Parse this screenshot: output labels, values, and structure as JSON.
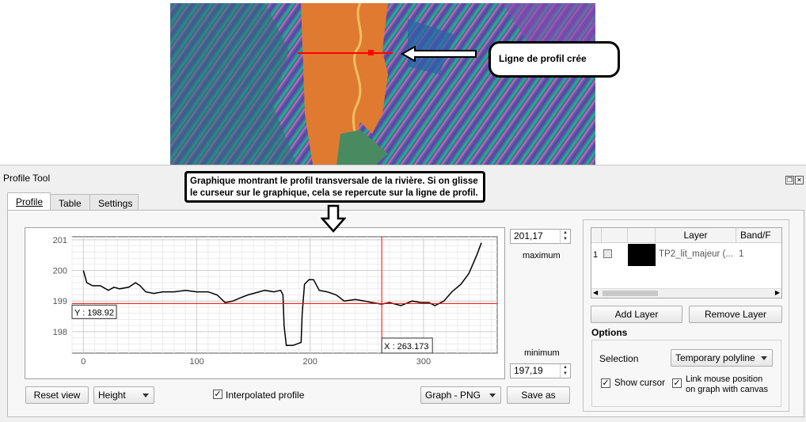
{
  "map": {
    "annotation_text": "Ligne de profil crée"
  },
  "dock": {
    "title": "Profile Tool",
    "annotation_text": "Graphique montrant le profil transversale de la rivière. Si on glisse le curseur sur le graphique, cela se repercute sur la ligne de profil."
  },
  "tabs": [
    {
      "label": "Profile"
    },
    {
      "label": "Table"
    },
    {
      "label": "Settings"
    }
  ],
  "plot": {
    "max_value": "201,17",
    "max_label": "maximum",
    "min_label": "minimum",
    "min_value": "197,19",
    "cursor_y_label": "Y : 198.92",
    "cursor_x_label": "X : 263.173"
  },
  "chart_data": {
    "type": "line",
    "title": "",
    "xlabel": "",
    "ylabel": "",
    "xlim": [
      -10,
      365
    ],
    "ylim": [
      197.3,
      201.1
    ],
    "x_ticks": [
      0,
      100,
      200,
      300
    ],
    "y_ticks": [
      198,
      199,
      200,
      201
    ],
    "grid": true,
    "cursor": {
      "x": 263.173,
      "y": 198.92,
      "color": "#ff0000"
    },
    "series": [
      {
        "color": "#000000",
        "points": [
          [
            0,
            200.0
          ],
          [
            3,
            199.6
          ],
          [
            8,
            199.5
          ],
          [
            15,
            199.5
          ],
          [
            22,
            199.35
          ],
          [
            27,
            199.45
          ],
          [
            32,
            199.4
          ],
          [
            40,
            199.45
          ],
          [
            46,
            199.6
          ],
          [
            50,
            199.5
          ],
          [
            55,
            199.3
          ],
          [
            62,
            199.25
          ],
          [
            70,
            199.3
          ],
          [
            80,
            199.3
          ],
          [
            90,
            199.35
          ],
          [
            100,
            199.3
          ],
          [
            110,
            199.3
          ],
          [
            118,
            199.2
          ],
          [
            125,
            198.95
          ],
          [
            132,
            199.0
          ],
          [
            138,
            199.1
          ],
          [
            145,
            199.2
          ],
          [
            150,
            199.25
          ],
          [
            160,
            199.35
          ],
          [
            168,
            199.3
          ],
          [
            174,
            199.35
          ],
          [
            176,
            199.2
          ],
          [
            177,
            198.2
          ],
          [
            179,
            197.55
          ],
          [
            185,
            197.55
          ],
          [
            192,
            197.65
          ],
          [
            193,
            198.6
          ],
          [
            195,
            199.55
          ],
          [
            199,
            199.7
          ],
          [
            203,
            199.7
          ],
          [
            208,
            199.35
          ],
          [
            215,
            199.3
          ],
          [
            223,
            199.2
          ],
          [
            230,
            199.0
          ],
          [
            240,
            199.05
          ],
          [
            248,
            199.0
          ],
          [
            255,
            198.95
          ],
          [
            263,
            198.9
          ],
          [
            270,
            198.95
          ],
          [
            280,
            198.85
          ],
          [
            290,
            199.0
          ],
          [
            298,
            198.95
          ],
          [
            305,
            198.95
          ],
          [
            310,
            198.85
          ],
          [
            318,
            199.0
          ],
          [
            325,
            199.3
          ],
          [
            333,
            199.55
          ],
          [
            340,
            199.9
          ],
          [
            347,
            200.5
          ],
          [
            351,
            200.9
          ]
        ]
      }
    ]
  },
  "controls": {
    "reset_label": "Reset view",
    "height_option": "Height",
    "interpolated_label": "Interpolated profile",
    "interpolated_checked": true,
    "export_option": "Graph - PNG",
    "save_label": "Save as"
  },
  "layers": {
    "headers": [
      "",
      "",
      "Layer",
      "Band/F"
    ],
    "rows": [
      {
        "index": "1",
        "color": "#000000",
        "name": "TP2_lit_majeur (...",
        "band": "1"
      }
    ],
    "add_label": "Add Layer",
    "remove_label": "Remove Layer"
  },
  "options": {
    "title": "Options",
    "selection_label": "Selection",
    "selection_value": "Temporary polyline",
    "show_cursor_label": "Show cursor",
    "show_cursor_checked": true,
    "link_label_line1": "Link mouse position",
    "link_label_line2": "on graph with canvas",
    "link_checked": true
  }
}
